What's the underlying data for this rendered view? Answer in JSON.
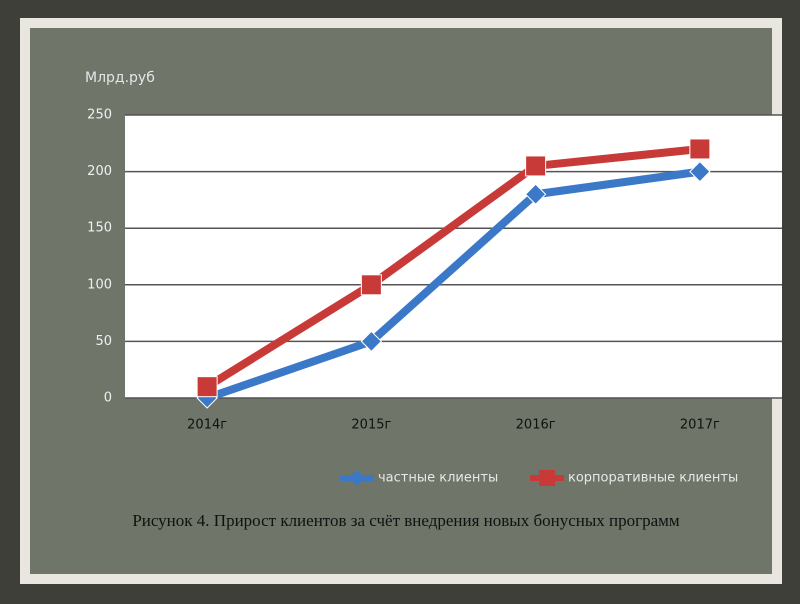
{
  "chart_data": {
    "type": "line",
    "y_label": "Млрд.руб",
    "categories": [
      "2014г",
      "2015г",
      "2016г",
      "2017г"
    ],
    "series": [
      {
        "name": "частные клиенты",
        "color": "#3c78c8",
        "marker": "diamond",
        "values": [
          0,
          50,
          180,
          200
        ]
      },
      {
        "name": "корпоративные клиенты",
        "color": "#c83a38",
        "marker": "square",
        "values": [
          10,
          100,
          205,
          220
        ]
      }
    ],
    "ylim": [
      0,
      250
    ],
    "yticks": [
      0,
      50,
      100,
      150,
      200,
      250
    ],
    "grid": true,
    "caption": "Рисунок 4. Прирост клиентов за счёт внедрения новых бонусных программ"
  }
}
